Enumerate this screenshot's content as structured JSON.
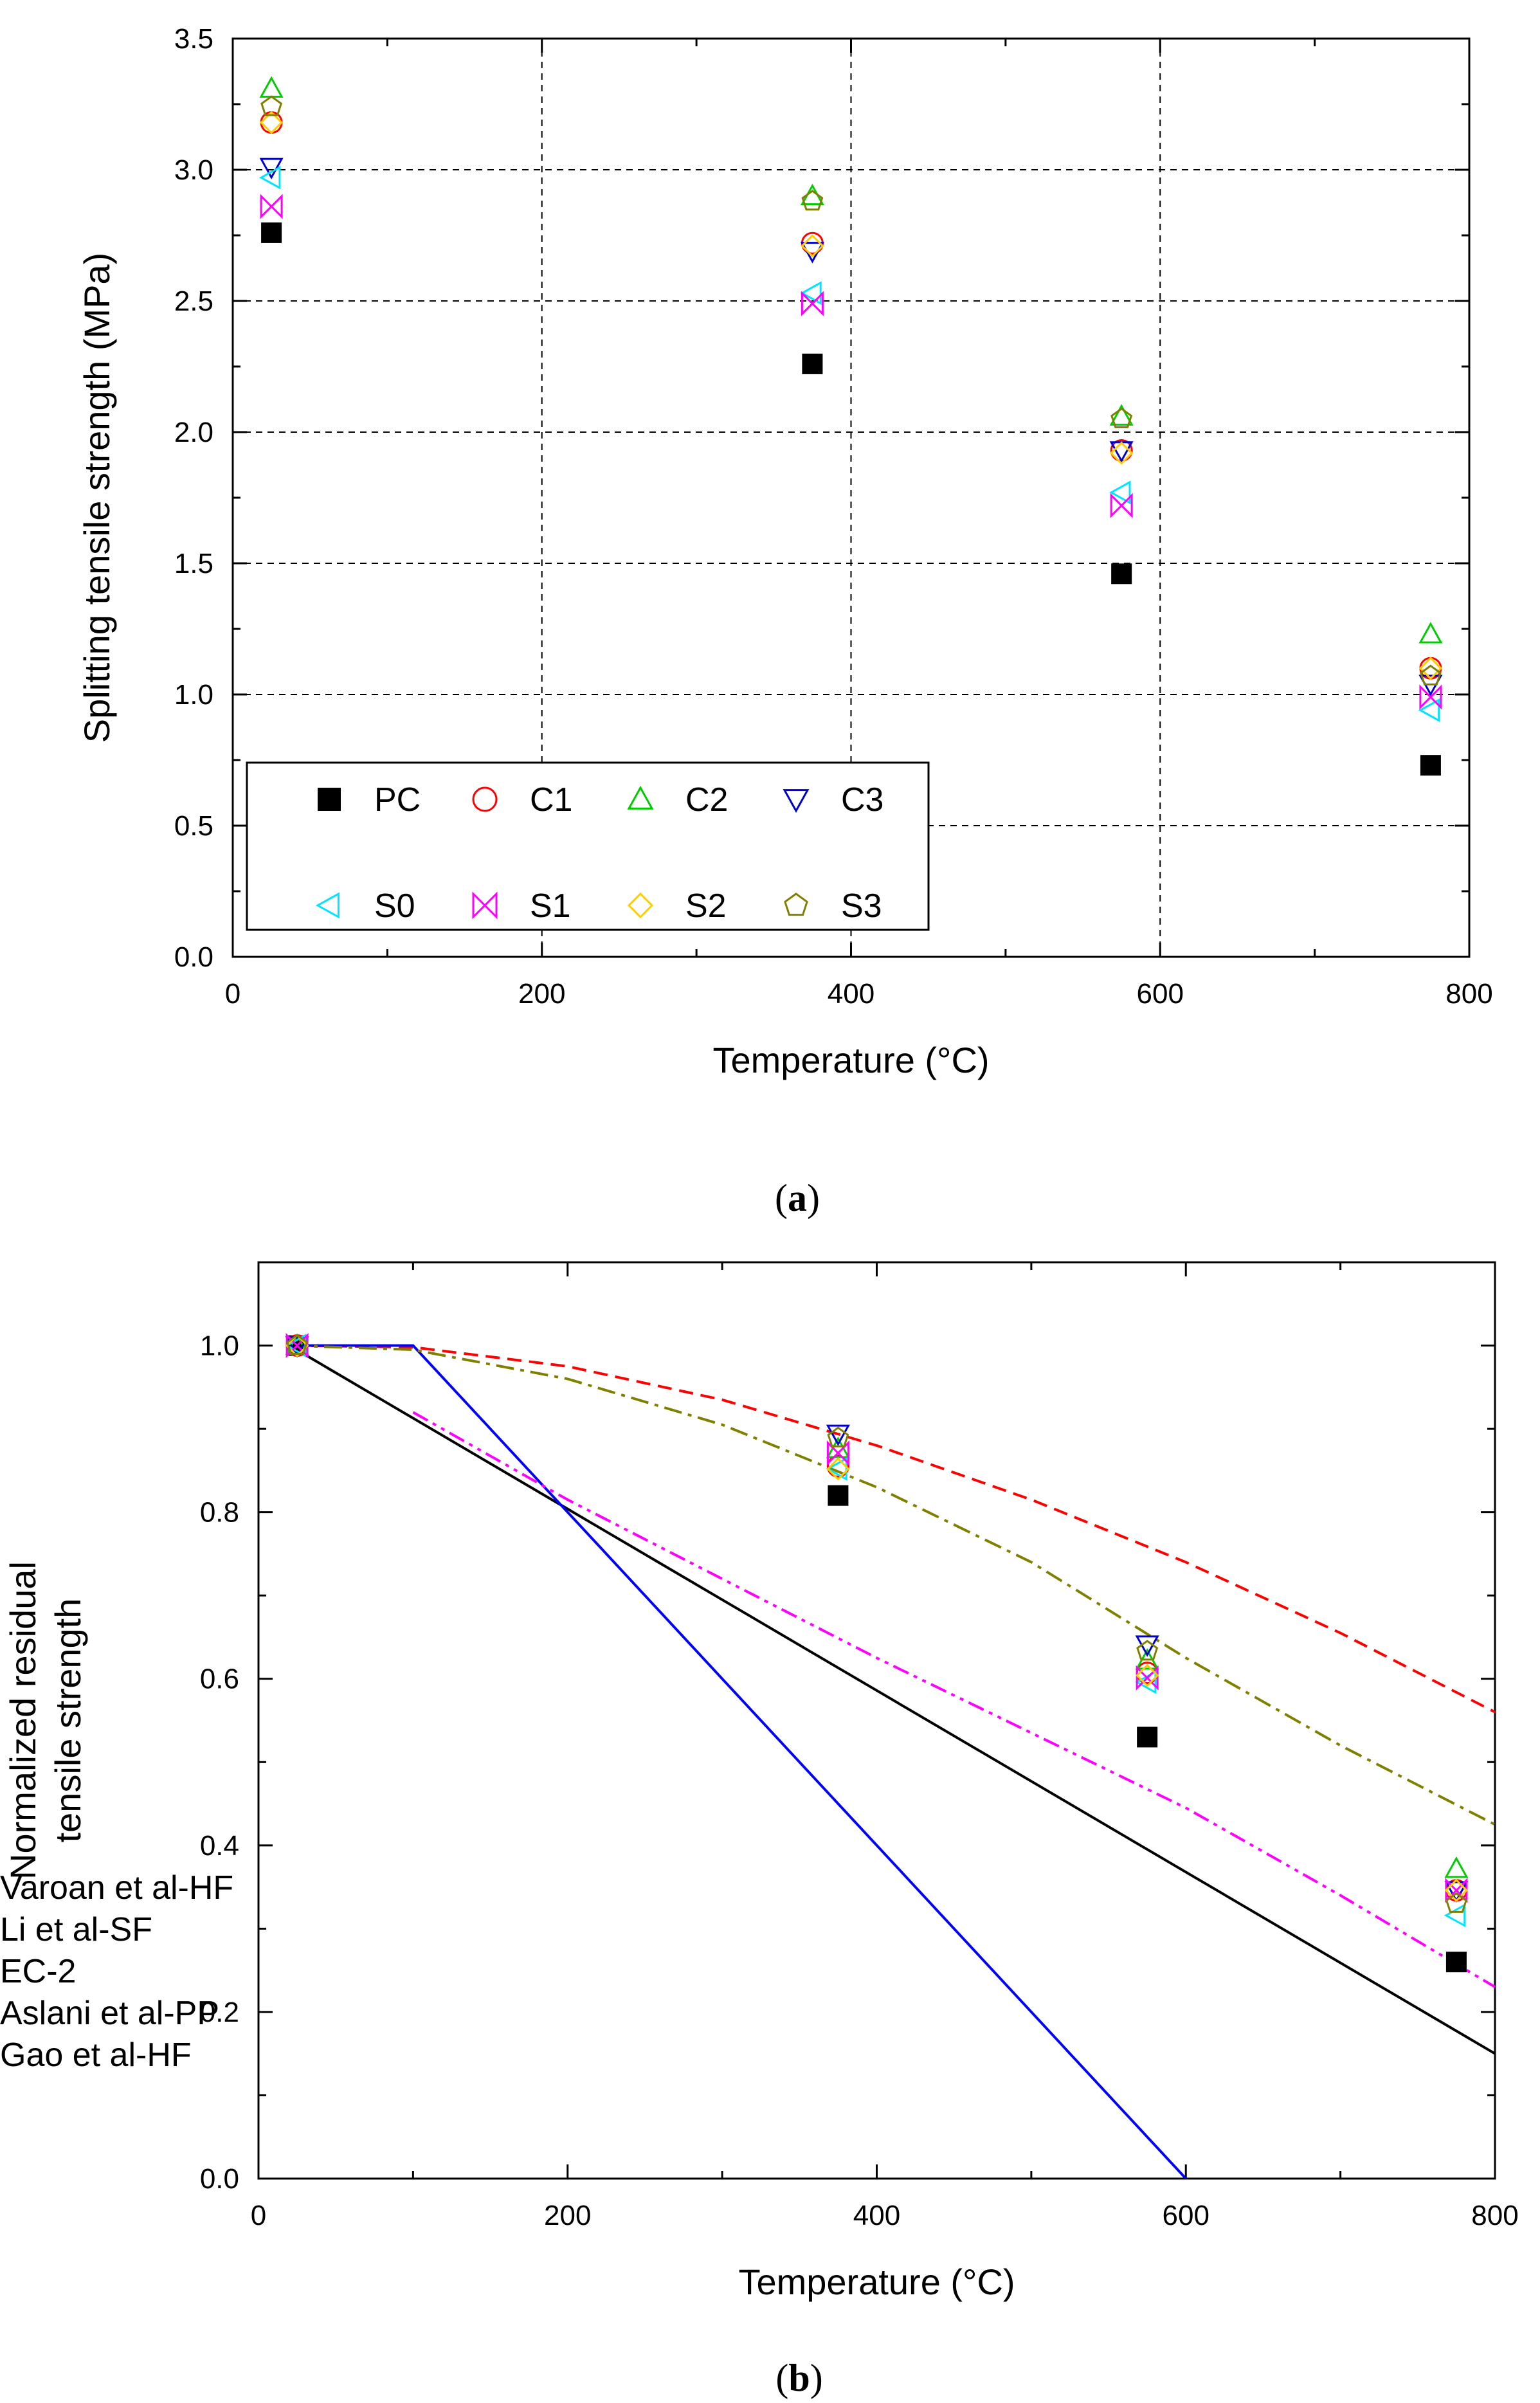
{
  "chart_data": [
    {
      "id": "a",
      "type": "scatter",
      "caption_label": "a",
      "xlabel": "Temperature (°C)",
      "ylabel": "Splitting tensile strength (MPa)",
      "xlim": [
        0,
        800
      ],
      "ylim": [
        0,
        3.5
      ],
      "xticks": [
        0,
        200,
        400,
        600,
        800
      ],
      "yticks": [
        0.0,
        0.5,
        1.0,
        1.5,
        2.0,
        2.5,
        3.0,
        3.5
      ],
      "xtick_labels": [
        "0",
        "200",
        "400",
        "600",
        "800"
      ],
      "ytick_labels": [
        "0.0",
        "0.5",
        "1.0",
        "1.5",
        "2.0",
        "2.5",
        "3.0",
        "3.5"
      ],
      "grid": true,
      "legend_position": "bottom-left",
      "x": [
        25,
        375,
        575,
        775
      ],
      "series": [
        {
          "name": "PC",
          "marker": "square-filled",
          "color": "#000000",
          "values": [
            2.76,
            2.26,
            1.46,
            0.73
          ]
        },
        {
          "name": "C1",
          "marker": "circle",
          "color": "#ff0000",
          "values": [
            3.18,
            2.72,
            1.93,
            1.1
          ]
        },
        {
          "name": "C2",
          "marker": "triangle-up",
          "color": "#00cc00",
          "values": [
            3.31,
            2.9,
            2.06,
            1.23
          ]
        },
        {
          "name": "C3",
          "marker": "triangle-down",
          "color": "#0000cc",
          "values": [
            3.01,
            2.69,
            1.93,
            1.04
          ]
        },
        {
          "name": "S0",
          "marker": "triangle-left",
          "color": "#00e5ff",
          "values": [
            2.97,
            2.53,
            1.77,
            0.94
          ]
        },
        {
          "name": "S1",
          "marker": "bowtie",
          "color": "#ff00ff",
          "values": [
            2.86,
            2.49,
            1.72,
            0.99
          ]
        },
        {
          "name": "S2",
          "marker": "diamond",
          "color": "#ffcc00",
          "values": [
            3.18,
            2.71,
            1.92,
            1.1
          ]
        },
        {
          "name": "S3",
          "marker": "pentagon",
          "color": "#808000",
          "values": [
            3.24,
            2.88,
            2.05,
            1.07
          ]
        }
      ]
    },
    {
      "id": "b",
      "type": "line",
      "caption_label": "b",
      "xlabel": "Temperature (°C)",
      "ylabel_lines": [
        "Normalized residual",
        "tensile strength"
      ],
      "xlim": [
        0,
        800
      ],
      "ylim": [
        0,
        1.1
      ],
      "xticks": [
        0,
        200,
        400,
        600,
        800
      ],
      "yticks": [
        0.0,
        0.2,
        0.4,
        0.6,
        0.8,
        1.0
      ],
      "xtick_labels": [
        "0",
        "200",
        "400",
        "600",
        "800"
      ],
      "ytick_labels": [
        "0.0",
        "0.2",
        "0.4",
        "0.6",
        "0.8",
        "1.0"
      ],
      "grid": false,
      "legend_position": "bottom-left",
      "lines": [
        {
          "name": "Varoan et al-HF",
          "color": "#000000",
          "dash": "solid",
          "x": [
            20,
            800
          ],
          "y": [
            1.0,
            0.15
          ]
        },
        {
          "name": "Li et al-SF",
          "color": "#ff0000",
          "dash": "dashed",
          "x": [
            20,
            100,
            200,
            300,
            400,
            500,
            600,
            700,
            800
          ],
          "y": [
            1.0,
            0.998,
            0.975,
            0.935,
            0.88,
            0.815,
            0.74,
            0.655,
            0.56
          ]
        },
        {
          "name": "EC-2",
          "color": "#0000ff",
          "dash": "solid",
          "x": [
            20,
            100,
            600
          ],
          "y": [
            1.0,
            1.0,
            0.0
          ]
        },
        {
          "name": "Aslani et al-PP",
          "color": "#ff00ff",
          "dash": "dashdotdot",
          "x": [
            100,
            200,
            300,
            400,
            500,
            600,
            700,
            800
          ],
          "y": [
            0.92,
            0.815,
            0.72,
            0.625,
            0.535,
            0.445,
            0.34,
            0.23
          ]
        },
        {
          "name": "Gao et al-HF",
          "color": "#808000",
          "dash": "dashdot",
          "x": [
            20,
            100,
            200,
            300,
            400,
            500,
            600,
            700,
            800
          ],
          "y": [
            1.0,
            0.995,
            0.96,
            0.905,
            0.83,
            0.74,
            0.625,
            0.52,
            0.425
          ]
        }
      ],
      "x": [
        25,
        375,
        575,
        775
      ],
      "series": [
        {
          "name": "PC",
          "marker": "square-filled",
          "color": "#000000",
          "values": [
            1.0,
            0.82,
            0.53,
            0.26
          ]
        },
        {
          "name": "C1",
          "marker": "circle",
          "color": "#ff0000",
          "values": [
            1.0,
            0.855,
            0.607,
            0.346
          ]
        },
        {
          "name": "C2",
          "marker": "triangle-up",
          "color": "#00cc00",
          "values": [
            1.0,
            0.876,
            0.622,
            0.372
          ]
        },
        {
          "name": "C3",
          "marker": "triangle-down",
          "color": "#0000cc",
          "values": [
            1.0,
            0.894,
            0.641,
            0.346
          ]
        },
        {
          "name": "S0",
          "marker": "triangle-left",
          "color": "#00e5ff",
          "values": [
            1.0,
            0.852,
            0.596,
            0.316
          ]
        },
        {
          "name": "S1",
          "marker": "bowtie",
          "color": "#ff00ff",
          "values": [
            1.0,
            0.871,
            0.601,
            0.346
          ]
        },
        {
          "name": "S2",
          "marker": "diamond",
          "color": "#ffcc00",
          "values": [
            1.0,
            0.852,
            0.604,
            0.346
          ]
        },
        {
          "name": "S3",
          "marker": "pentagon",
          "color": "#808000",
          "values": [
            1.0,
            0.889,
            0.633,
            0.33
          ]
        }
      ]
    }
  ]
}
